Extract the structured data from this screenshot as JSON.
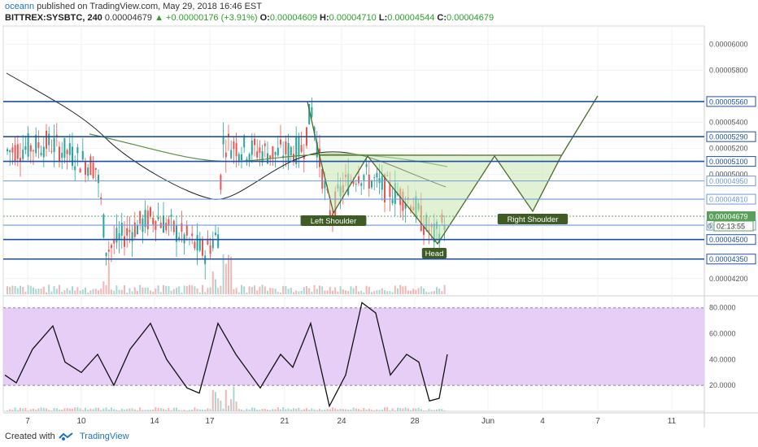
{
  "header": {
    "author": "oceann",
    "published_text": "published on TradingView.com, May 29, 2018 16:46 EST",
    "symbol": "BITTREX:SYSBTC, 240",
    "last": "0.00004679",
    "change_arrow": "▲",
    "change": "+0.00000176 (+3.91%)",
    "o_label": "O:",
    "o_value": "0.00004609",
    "h_label": "H:",
    "h_value": "0.00004710",
    "l_label": "L:",
    "l_value": "0.00004544",
    "c_label": "C:",
    "c_value": "0.00004679"
  },
  "footer": {
    "created_with": "Created with",
    "brand": "TradingView"
  },
  "colors": {
    "up": "#26a69a",
    "down": "#ef5350",
    "level_line": "#1f4fa3",
    "level_line_light": "#6f98d8",
    "pattern_fill": "#c8e6b0",
    "pattern_stroke": "#4a6b2a",
    "rsi_band": "#e3c9f5",
    "ma_black": "#222222",
    "ma_green": "#5a8f3c"
  },
  "chart_data": [
    {
      "type": "candlestick",
      "title": "BITTREX:SYSBTC, 240",
      "price_axis_labels": [
        "0.00006000",
        "0.00005800",
        "0.00005400",
        "0.00005200",
        "0.00005000",
        "0.00004200"
      ],
      "levels": [
        {
          "value": 5.56e-05,
          "label": "0.00005560",
          "style": "strong"
        },
        {
          "value": 5.29e-05,
          "label": "0.00005290",
          "style": "strong"
        },
        {
          "value": 5.1e-05,
          "label": "0.00005100",
          "style": "strong"
        },
        {
          "value": 4.95e-05,
          "label": "0.00004950",
          "style": "light"
        },
        {
          "value": 4.81e-05,
          "label": "0.00004810",
          "style": "light"
        },
        {
          "value": 4.61e-05,
          "label": "0.00004610",
          "style": "light"
        },
        {
          "value": 4.5e-05,
          "label": "0.00004500",
          "style": "strong"
        },
        {
          "value": 4.35e-05,
          "label": "0.00004350",
          "style": "strong"
        }
      ],
      "current_price": {
        "value": 4.679e-05,
        "label": "0.00004679"
      },
      "countdown": {
        "prefix": "0.",
        "label": "02:13:55"
      },
      "annotations": [
        {
          "text": "Left Shoulder"
        },
        {
          "text": "Head"
        },
        {
          "text": "Right Shoulder"
        }
      ],
      "x_tick_labels": [
        "7",
        "10",
        "14",
        "17",
        "21",
        "24",
        "28",
        "Jun",
        "4",
        "7",
        "11"
      ],
      "ylim": [
        4.08e-05,
        6.14e-05
      ]
    },
    {
      "type": "line",
      "title": "RSI",
      "y_tick_labels": [
        "80.0000",
        "60.0000",
        "40.0000",
        "20.0000"
      ],
      "band": [
        20,
        80
      ],
      "ylim": [
        0,
        88
      ]
    }
  ]
}
